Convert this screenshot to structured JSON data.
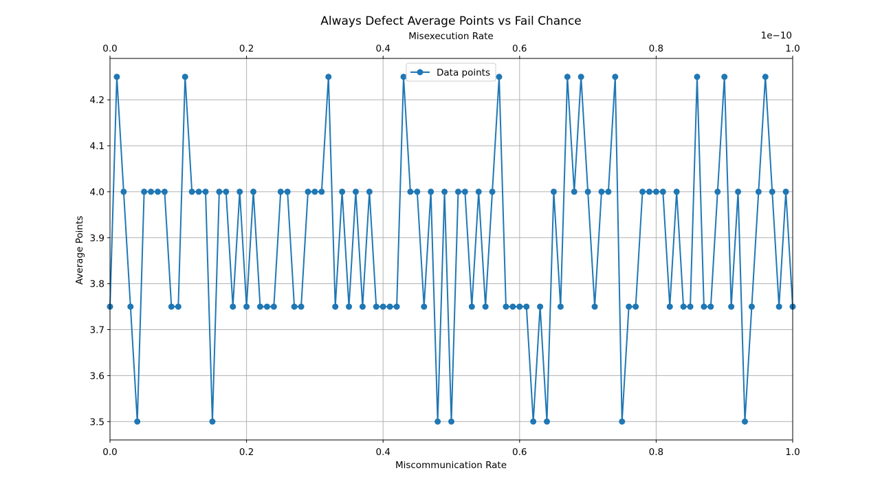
{
  "chart_data": {
    "type": "line",
    "title": "Always Defect Average Points vs Fail Chance",
    "xlabel": "Miscommunication Rate",
    "ylabel": "Average Points",
    "top_xlabel": "Misexecution Rate",
    "top_axis_offset": "1e−10",
    "xlim": [
      0,
      1
    ],
    "ylim": [
      3.46,
      4.29
    ],
    "top_xlim": [
      0,
      1
    ],
    "x_ticks": [
      "0.0",
      "0.2",
      "0.4",
      "0.6",
      "0.8",
      "1.0"
    ],
    "top_x_ticks": [
      "0.0",
      "0.2",
      "0.4",
      "0.6",
      "0.8",
      "1.0"
    ],
    "y_ticks": [
      "3.5",
      "3.6",
      "3.7",
      "3.8",
      "3.9",
      "4.0",
      "4.1",
      "4.2"
    ],
    "grid": true,
    "legend_position": "top-center",
    "series": [
      {
        "name": "Data points",
        "color": "#1f77b4",
        "marker": "circle",
        "x": [
          0.0,
          0.01,
          0.02,
          0.03,
          0.04,
          0.05,
          0.06,
          0.07,
          0.08,
          0.09,
          0.1,
          0.11,
          0.12,
          0.13,
          0.14,
          0.15,
          0.16,
          0.17,
          0.18,
          0.19,
          0.2,
          0.21,
          0.22,
          0.23,
          0.24,
          0.25,
          0.26,
          0.27,
          0.28,
          0.29,
          0.3,
          0.31,
          0.32,
          0.33,
          0.34,
          0.35,
          0.36,
          0.37,
          0.38,
          0.39,
          0.4,
          0.41,
          0.42,
          0.43,
          0.44,
          0.45,
          0.46,
          0.47,
          0.48,
          0.49,
          0.5,
          0.51,
          0.52,
          0.53,
          0.54,
          0.55,
          0.56,
          0.57,
          0.58,
          0.59,
          0.6,
          0.61,
          0.62,
          0.63,
          0.64,
          0.65,
          0.66,
          0.67,
          0.68,
          0.69,
          0.7,
          0.71,
          0.72,
          0.73,
          0.74,
          0.75,
          0.76,
          0.77,
          0.78,
          0.79,
          0.8,
          0.81,
          0.82,
          0.83,
          0.84,
          0.85,
          0.86,
          0.87,
          0.88,
          0.89,
          0.9,
          0.91,
          0.92,
          0.93,
          0.94,
          0.95,
          0.96,
          0.97,
          0.98,
          0.99,
          1.0
        ],
        "y": [
          3.75,
          4.25,
          4.0,
          3.75,
          3.5,
          4.0,
          4.0,
          4.0,
          4.0,
          3.75,
          3.75,
          4.25,
          4.0,
          4.0,
          4.0,
          3.5,
          4.0,
          4.0,
          3.75,
          4.0,
          3.75,
          4.0,
          3.75,
          3.75,
          3.75,
          4.0,
          4.0,
          3.75,
          3.75,
          4.0,
          4.0,
          4.0,
          4.25,
          3.75,
          4.0,
          3.75,
          4.0,
          3.75,
          4.0,
          3.75,
          3.75,
          3.75,
          3.75,
          4.25,
          4.0,
          4.0,
          3.75,
          4.0,
          3.5,
          4.0,
          3.5,
          4.0,
          4.0,
          3.75,
          4.0,
          3.75,
          4.0,
          4.25,
          3.75,
          3.75,
          3.75,
          3.75,
          3.5,
          3.75,
          3.5,
          4.0,
          3.75,
          4.25,
          4.0,
          4.25,
          4.0,
          3.75,
          4.0,
          4.0,
          4.25,
          3.5,
          3.75,
          3.75,
          4.0,
          4.0,
          4.0,
          4.0,
          3.75,
          4.0,
          3.75,
          3.75,
          4.25,
          3.75,
          3.75,
          4.0,
          4.25,
          3.75,
          4.0,
          3.5,
          3.75,
          4.0,
          4.25,
          4.0,
          3.75,
          4.0,
          3.75
        ]
      }
    ]
  }
}
